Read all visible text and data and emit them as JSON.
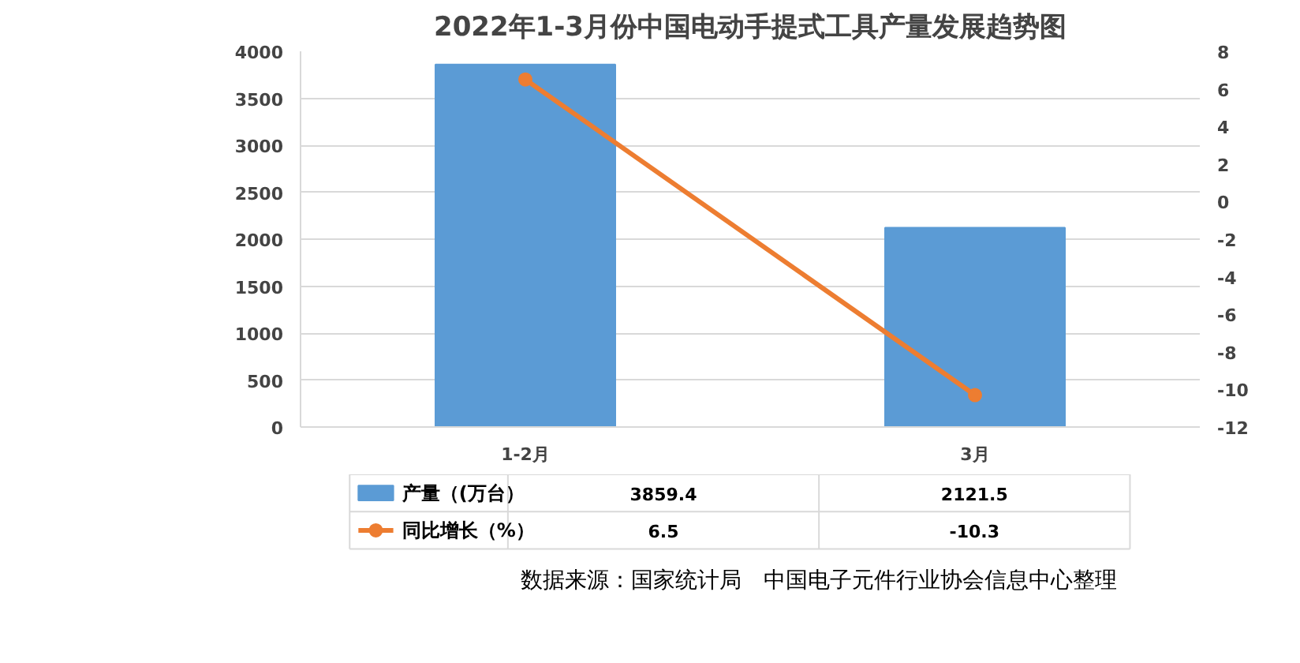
{
  "chart_data": {
    "type": "bar",
    "title": "2022年1-3月份中国电动手提式工具产量发展趋势图",
    "categories": [
      "1-2月",
      "3月"
    ],
    "series": [
      {
        "name": "产量（(万台）",
        "color": "#5b9bd5",
        "values": [
          3859.4,
          2121.5
        ]
      },
      {
        "name": "同比增长（%）",
        "type": "line",
        "axis": "y2",
        "color": "#ed7d31",
        "values": [
          6.5,
          -10.3
        ]
      }
    ],
    "ylim": [
      0,
      4000
    ],
    "yticks": [
      0,
      500,
      1000,
      1500,
      2000,
      2500,
      3000,
      3500,
      4000
    ],
    "y2lim": [
      -12,
      8
    ],
    "y2ticks": [
      -12,
      -10,
      -8,
      -6,
      -4,
      -2,
      0,
      2,
      4,
      6,
      8
    ],
    "grid": "y",
    "legend": "bottom",
    "data_labels": true,
    "marker": "circle",
    "line_style": "solid",
    "annotations": [
      "数据来源：国家统计局　中国电子元件行业协会信息中心整理"
    ]
  }
}
